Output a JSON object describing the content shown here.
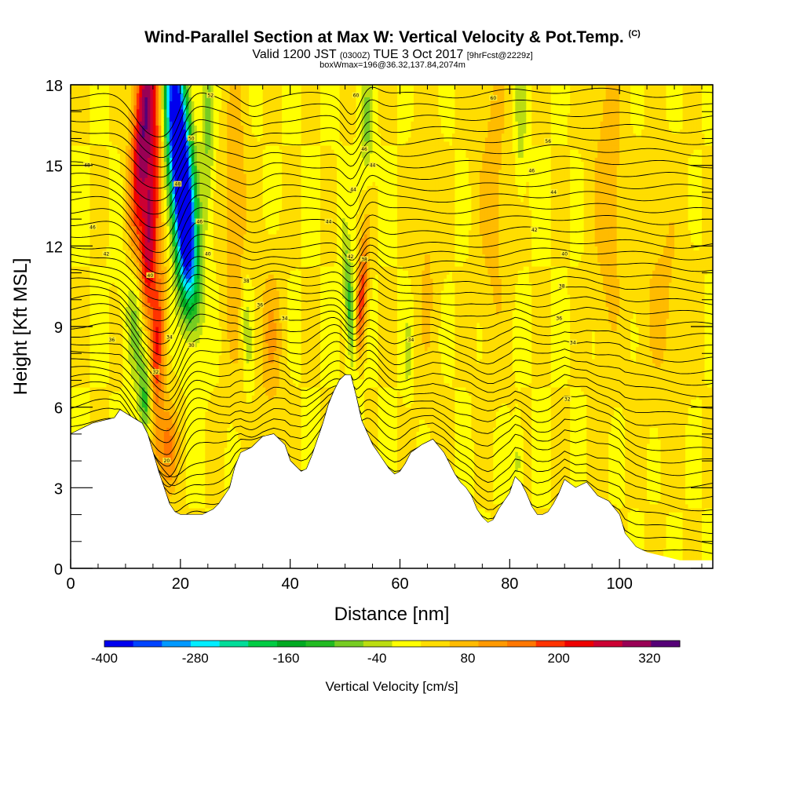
{
  "header": {
    "title_main": "Wind-Parallel Section at Max W: Vertical Velocity & Pot.Temp.",
    "title_mark": "(C)",
    "subtitle_a": "Valid 1200 JST",
    "subtitle_b": "(0300Z)",
    "subtitle_c": "TUE 3 Oct 2017",
    "subtitle_d": "[9hrFcst@2229z]",
    "subtitle_line3": "boxWmax=196@36.32,137.84,2074m"
  },
  "chart_data": {
    "type": "heatmap",
    "xlabel": "Distance [nm]",
    "ylabel": "Height [Kft MSL]",
    "xlim": [
      0,
      117
    ],
    "ylim": [
      0,
      18
    ],
    "x_ticks": [
      "0",
      "20",
      "40",
      "60",
      "80",
      "100"
    ],
    "x_tick_values": [
      0,
      20,
      40,
      60,
      80,
      100
    ],
    "y_ticks": [
      "0",
      "3",
      "6",
      "9",
      "12",
      "15",
      "18"
    ],
    "y_tick_values": [
      0,
      3,
      6,
      9,
      12,
      15,
      18
    ],
    "terrain": {
      "x": [
        0,
        4,
        8,
        9,
        13,
        14,
        15,
        16,
        17,
        18,
        19,
        20,
        24,
        26,
        27,
        29,
        30,
        31,
        33,
        35,
        37,
        39,
        40,
        41,
        42,
        43,
        44,
        45,
        46,
        47,
        48,
        49,
        50,
        51,
        52,
        53,
        55,
        56,
        57,
        58,
        59,
        60,
        61,
        62,
        64,
        66,
        68,
        69,
        70,
        71,
        72,
        73,
        74,
        75,
        76,
        77,
        78,
        79,
        80,
        81,
        82,
        83,
        84,
        85,
        86,
        87,
        88,
        89,
        90,
        92,
        94,
        96,
        98,
        100,
        101,
        103,
        105,
        107,
        109,
        111,
        113,
        117
      ],
      "height": [
        5.0,
        5.4,
        5.6,
        5.9,
        5.4,
        5.0,
        4.3,
        3.6,
        3.0,
        2.4,
        2.1,
        2.0,
        2.0,
        2.2,
        2.4,
        3.0,
        3.8,
        4.3,
        4.5,
        4.9,
        5.0,
        4.6,
        4.0,
        3.8,
        3.6,
        3.7,
        4.2,
        4.8,
        5.4,
        6.1,
        6.6,
        7.0,
        7.2,
        7.2,
        6.4,
        5.5,
        4.6,
        4.3,
        4.0,
        3.7,
        3.5,
        3.6,
        3.9,
        4.3,
        4.6,
        4.8,
        4.3,
        3.9,
        3.5,
        3.2,
        3.0,
        2.7,
        2.2,
        1.9,
        1.7,
        1.8,
        2.2,
        2.5,
        2.8,
        3.4,
        3.2,
        2.8,
        2.3,
        2.0,
        2.0,
        2.1,
        2.4,
        2.8,
        3.3,
        3.0,
        3.2,
        2.7,
        2.5,
        2.0,
        1.3,
        0.8,
        0.6,
        0.5,
        0.4,
        0.3,
        0.3,
        0.3
      ]
    },
    "w_features": [
      {
        "x": 13.5,
        "y": 17.0,
        "w": 320,
        "sx": 1.4,
        "sy": 3.5,
        "tilt": -0.35
      },
      {
        "x": 14.5,
        "y": 12.5,
        "w": 260,
        "sx": 1.1,
        "sy": 3.0,
        "tilt": -0.3
      },
      {
        "x": 15.5,
        "y": 7.5,
        "w": 220,
        "sx": 1.0,
        "sy": 2.5,
        "tilt": -0.2
      },
      {
        "x": 17.5,
        "y": 4.5,
        "w": 140,
        "sx": 1.3,
        "sy": 1.2,
        "tilt": 0.0
      },
      {
        "x": 19.5,
        "y": 16.5,
        "w": -400,
        "sx": 1.5,
        "sy": 3.0,
        "tilt": 0.4
      },
      {
        "x": 20.5,
        "y": 13.5,
        "w": -300,
        "sx": 1.5,
        "sy": 2.5,
        "tilt": 0.4
      },
      {
        "x": 21.0,
        "y": 11.5,
        "w": -150,
        "sx": 1.2,
        "sy": 1.5,
        "tilt": 0.3
      },
      {
        "x": 12.5,
        "y": 8.5,
        "w": -150,
        "sx": 1.6,
        "sy": 2.2,
        "tilt": 0.5
      },
      {
        "x": 14.0,
        "y": 6.0,
        "w": -130,
        "sx": 1.0,
        "sy": 1.0,
        "tilt": 0.0
      },
      {
        "x": 25.0,
        "y": 16.5,
        "w": -90,
        "sx": 0.8,
        "sy": 2.5,
        "tilt": 0.0
      },
      {
        "x": 32.0,
        "y": 9.0,
        "w": -70,
        "sx": 0.7,
        "sy": 1.5,
        "tilt": 0.2
      },
      {
        "x": 30.0,
        "y": 13.0,
        "w": 80,
        "sx": 1.5,
        "sy": 4.0,
        "tilt": 0.0
      },
      {
        "x": 36.5,
        "y": 8.5,
        "w": 80,
        "sx": 1.5,
        "sy": 2.0,
        "tilt": 0.0
      },
      {
        "x": 51.0,
        "y": 9.5,
        "w": -150,
        "sx": 0.7,
        "sy": 2.0,
        "tilt": 0.35
      },
      {
        "x": 53.0,
        "y": 10.0,
        "w": 190,
        "sx": 0.7,
        "sy": 1.8,
        "tilt": -0.3
      },
      {
        "x": 54.0,
        "y": 16.5,
        "w": -90,
        "sx": 0.8,
        "sy": 1.5,
        "tilt": 0.0
      },
      {
        "x": 61.5,
        "y": 8.0,
        "w": -60,
        "sx": 0.6,
        "sy": 1.0,
        "tilt": 0.0
      },
      {
        "x": 82.0,
        "y": 17.0,
        "w": -70,
        "sx": 0.7,
        "sy": 2.0,
        "tilt": 0.0
      },
      {
        "x": 81.5,
        "y": 4.0,
        "w": -60,
        "sx": 0.6,
        "sy": 1.0,
        "tilt": 0.0
      },
      {
        "x": 77.0,
        "y": 14.0,
        "w": 60,
        "sx": 2.0,
        "sy": 4.0,
        "tilt": 0.0
      },
      {
        "x": 98.0,
        "y": 14.0,
        "w": 70,
        "sx": 2.0,
        "sy": 4.0,
        "tilt": 0.0
      },
      {
        "x": 108.0,
        "y": 10.0,
        "w": 50,
        "sx": 3.0,
        "sy": 3.0,
        "tilt": 0.0
      },
      {
        "x": 65.0,
        "y": 12.0,
        "w": 45,
        "sx": 1.5,
        "sy": 4.0,
        "tilt": 0.0
      }
    ],
    "isentropes": {
      "count": 41,
      "base_height": 0.4,
      "spacing": 0.43,
      "bumps": [
        {
          "x": 14.5,
          "amp": -1.3,
          "width": 3.0
        },
        {
          "x": 18.5,
          "amp": -0.9,
          "width": 2.0
        },
        {
          "x": 22.0,
          "amp": 0.6,
          "width": 3.5
        },
        {
          "x": 51.5,
          "amp": -0.8,
          "width": 1.5
        },
        {
          "x": 54.0,
          "amp": 0.5,
          "width": 2.0
        },
        {
          "x": 33.0,
          "amp": -0.3,
          "width": 2.0
        },
        {
          "x": 90.0,
          "amp": 0.2,
          "width": 10.0
        }
      ],
      "labels": [
        {
          "x": 3.0,
          "y": 15.0,
          "text": "48"
        },
        {
          "x": 4.0,
          "y": 12.7,
          "text": "46"
        },
        {
          "x": 6.5,
          "y": 11.7,
          "text": "42"
        },
        {
          "x": 7.5,
          "y": 8.5,
          "text": "36"
        },
        {
          "x": 14.5,
          "y": 10.9,
          "text": "40"
        },
        {
          "x": 18.0,
          "y": 8.6,
          "text": "34"
        },
        {
          "x": 22.0,
          "y": 8.3,
          "text": "30"
        },
        {
          "x": 15.5,
          "y": 7.3,
          "text": "32"
        },
        {
          "x": 17.5,
          "y": 4.0,
          "text": "20"
        },
        {
          "x": 19.5,
          "y": 14.3,
          "text": "48"
        },
        {
          "x": 22.0,
          "y": 16.0,
          "text": "50"
        },
        {
          "x": 25.5,
          "y": 17.6,
          "text": "52"
        },
        {
          "x": 23.5,
          "y": 12.9,
          "text": "46"
        },
        {
          "x": 25.0,
          "y": 11.7,
          "text": "40"
        },
        {
          "x": 32.0,
          "y": 10.7,
          "text": "38"
        },
        {
          "x": 34.5,
          "y": 9.8,
          "text": "36"
        },
        {
          "x": 39.0,
          "y": 9.3,
          "text": "34"
        },
        {
          "x": 47.0,
          "y": 12.9,
          "text": "44"
        },
        {
          "x": 51.0,
          "y": 11.6,
          "text": "42"
        },
        {
          "x": 53.5,
          "y": 11.5,
          "text": "38"
        },
        {
          "x": 51.5,
          "y": 14.1,
          "text": "44"
        },
        {
          "x": 53.5,
          "y": 15.6,
          "text": "46"
        },
        {
          "x": 55.0,
          "y": 15.0,
          "text": "44"
        },
        {
          "x": 52.0,
          "y": 17.6,
          "text": "60"
        },
        {
          "x": 62.0,
          "y": 8.5,
          "text": "34"
        },
        {
          "x": 77.0,
          "y": 17.5,
          "text": "60"
        },
        {
          "x": 87.0,
          "y": 15.9,
          "text": "56"
        },
        {
          "x": 84.0,
          "y": 14.8,
          "text": "46"
        },
        {
          "x": 88.0,
          "y": 14.0,
          "text": "44"
        },
        {
          "x": 84.5,
          "y": 12.6,
          "text": "42"
        },
        {
          "x": 90.0,
          "y": 11.7,
          "text": "40"
        },
        {
          "x": 89.5,
          "y": 10.5,
          "text": "38"
        },
        {
          "x": 89.0,
          "y": 9.3,
          "text": "36"
        },
        {
          "x": 91.5,
          "y": 8.4,
          "text": "34"
        },
        {
          "x": 90.5,
          "y": 6.3,
          "text": "32"
        }
      ]
    },
    "colorbar": {
      "title": "Vertical Velocity [cm/s]",
      "min": -400,
      "max": 360,
      "step": 40,
      "tick_labels": [
        "-400",
        "-280",
        "-160",
        "-40",
        "80",
        "200",
        "320"
      ],
      "tick_values": [
        -400,
        -280,
        -160,
        -40,
        80,
        200,
        320
      ],
      "colors": [
        "#0000ee",
        "#0044ff",
        "#0099ff",
        "#00eeff",
        "#00dd99",
        "#00cc44",
        "#00aa22",
        "#22bb22",
        "#77cc22",
        "#bbdd11",
        "#ffff00",
        "#ffdd00",
        "#ffbb00",
        "#ff9900",
        "#ff7700",
        "#ff3300",
        "#ee0000",
        "#cc0033",
        "#990055",
        "#550077"
      ]
    }
  }
}
